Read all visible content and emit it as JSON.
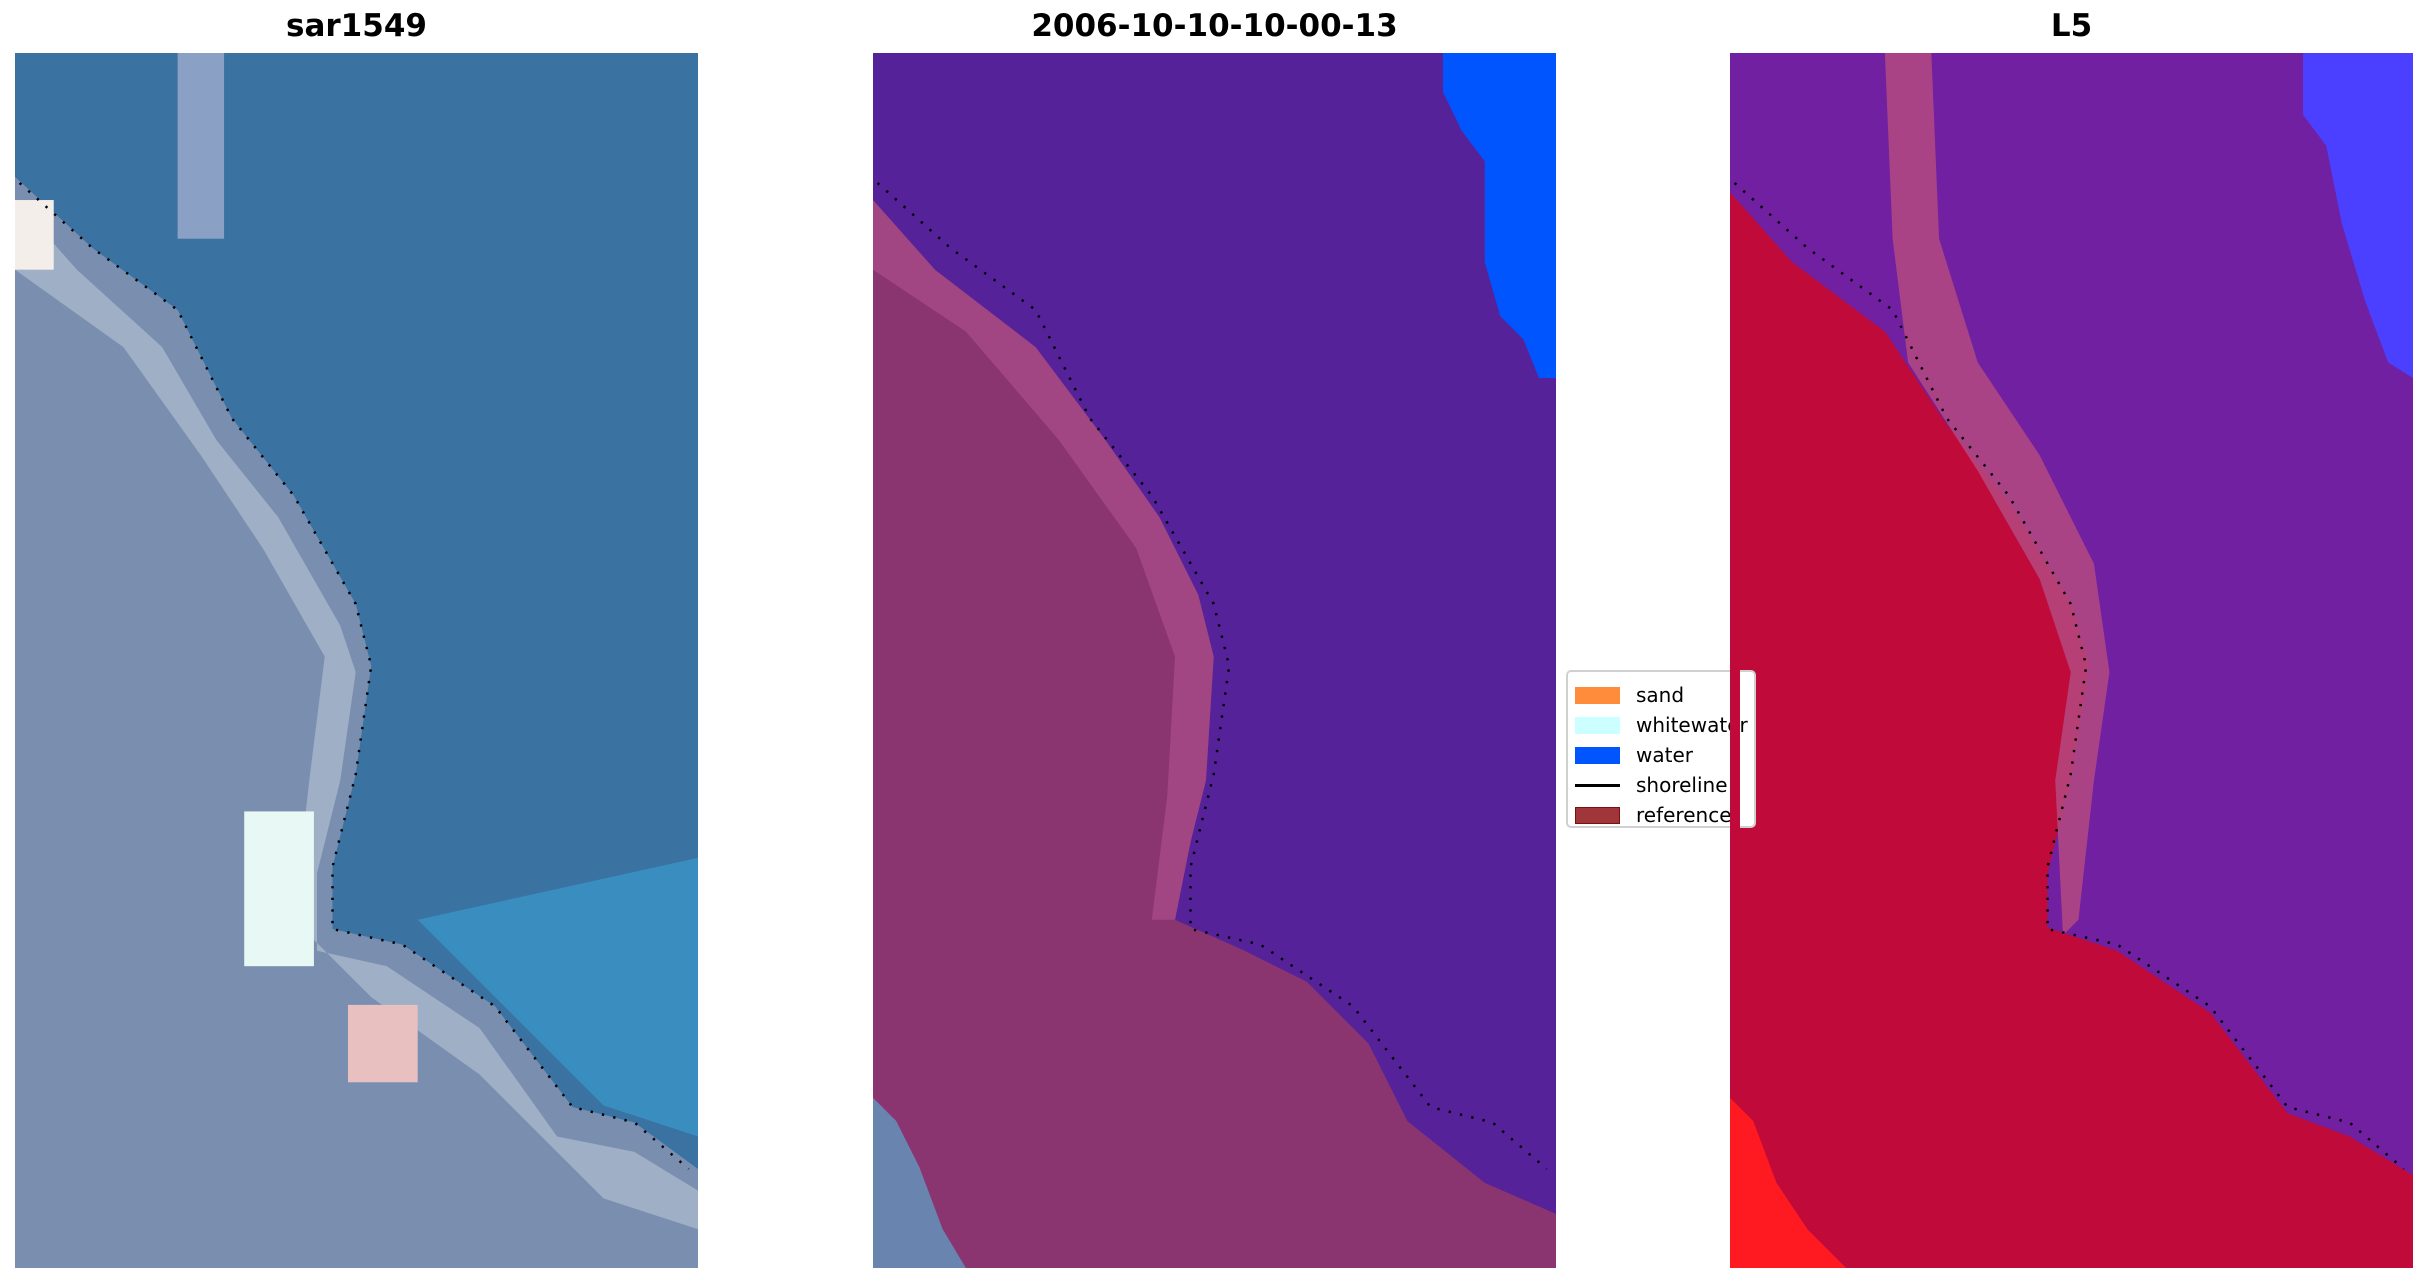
{
  "chart_data": [
    {
      "type": "image",
      "title": "sar1549",
      "axes": "off",
      "overlay": "shoreline (dotted black)"
    },
    {
      "type": "image",
      "title": "2006-10-10-10-00-13",
      "axes": "off",
      "overlay": "shoreline (dotted black)"
    },
    {
      "type": "image",
      "title": "L5",
      "axes": "off",
      "overlay": "shoreline (dotted black)"
    }
  ],
  "legend": {
    "placement": "center, between second and third panel",
    "items": [
      {
        "label": "sand",
        "color": "#ff8c3a",
        "kind": "patch"
      },
      {
        "label": "whitewater",
        "color": "#ccffff",
        "kind": "patch"
      },
      {
        "label": "water",
        "color": "#0055ff",
        "kind": "patch"
      },
      {
        "label": "shoreline",
        "color": "#000000",
        "kind": "line"
      },
      {
        "label": "reference",
        "color": "#a0353a",
        "kind": "patch"
      }
    ]
  }
}
